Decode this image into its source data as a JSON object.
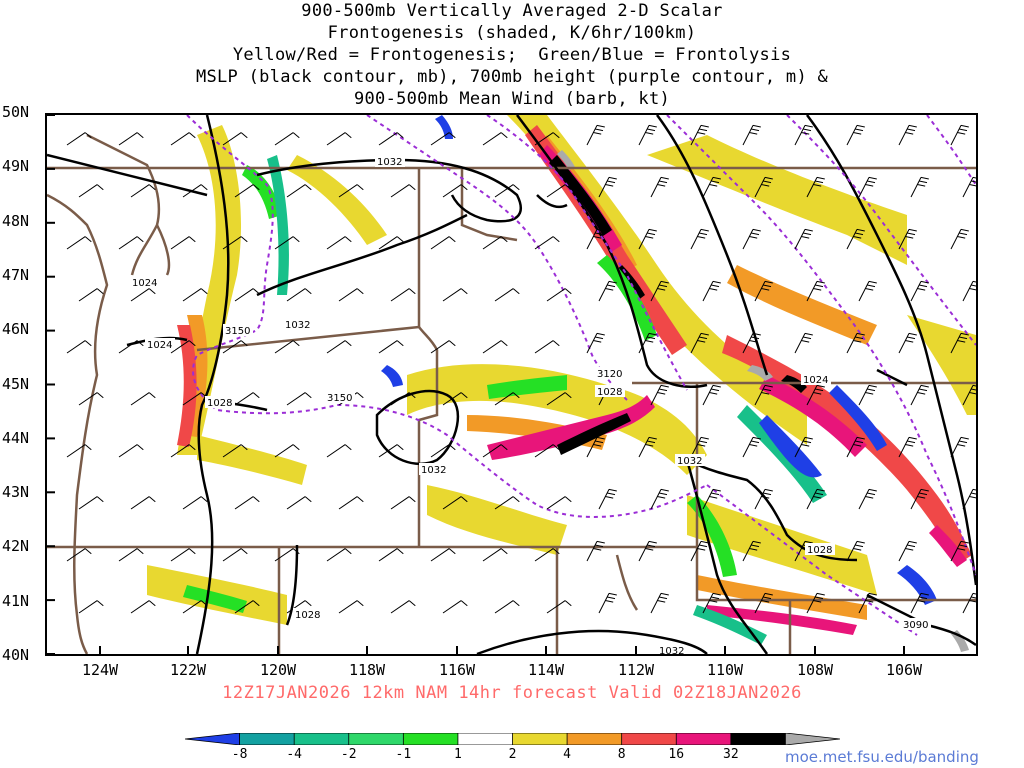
{
  "title": {
    "line1": "900-500mb Vertically Averaged 2-D Scalar",
    "line2": "Frontogenesis (shaded, K/6hr/100km)",
    "line3": "Yellow/Red = Frontogenesis;  Green/Blue = Frontolysis",
    "line4": "MSLP (black contour, mb), 700mb height (purple contour, m) &",
    "line5": "900-500mb Mean Wind (barb, kt)"
  },
  "axes": {
    "lat_labels": [
      "50N",
      "49N",
      "48N",
      "47N",
      "46N",
      "45N",
      "44N",
      "43N",
      "42N",
      "41N",
      "40N"
    ],
    "lon_labels": [
      "124W",
      "122W",
      "120W",
      "118W",
      "116W",
      "114W",
      "112W",
      "110W",
      "108W",
      "106W"
    ]
  },
  "contour_labels": {
    "mslp": [
      "1032",
      "1024",
      "1024",
      "1032",
      "1028",
      "1032",
      "1028",
      "1032",
      "1024",
      "1028",
      "1028",
      "1032"
    ],
    "height": [
      "3150",
      "3150",
      "3120",
      "3090"
    ]
  },
  "valid_line": "12Z17JAN2026 12km NAM 14hr forecast Valid 02Z18JAN2026",
  "colorbar": {
    "labels": [
      "-8",
      "-4",
      "-2",
      "-1",
      "1",
      "2",
      "4",
      "8",
      "16",
      "32"
    ],
    "colors": [
      "#1f3fe6",
      "#13a1a1",
      "#18c08a",
      "#2fd86a",
      "#25e025",
      "#ffffff",
      "#e8d830",
      "#f29a27",
      "#f04848",
      "#e8157a",
      "#000000",
      "#aaaaaa"
    ]
  },
  "credit": "moe.met.fsu.edu/banding",
  "colors": {
    "border": "#7a5c49",
    "mslp": "#000000",
    "height": "#9b2dd6"
  }
}
